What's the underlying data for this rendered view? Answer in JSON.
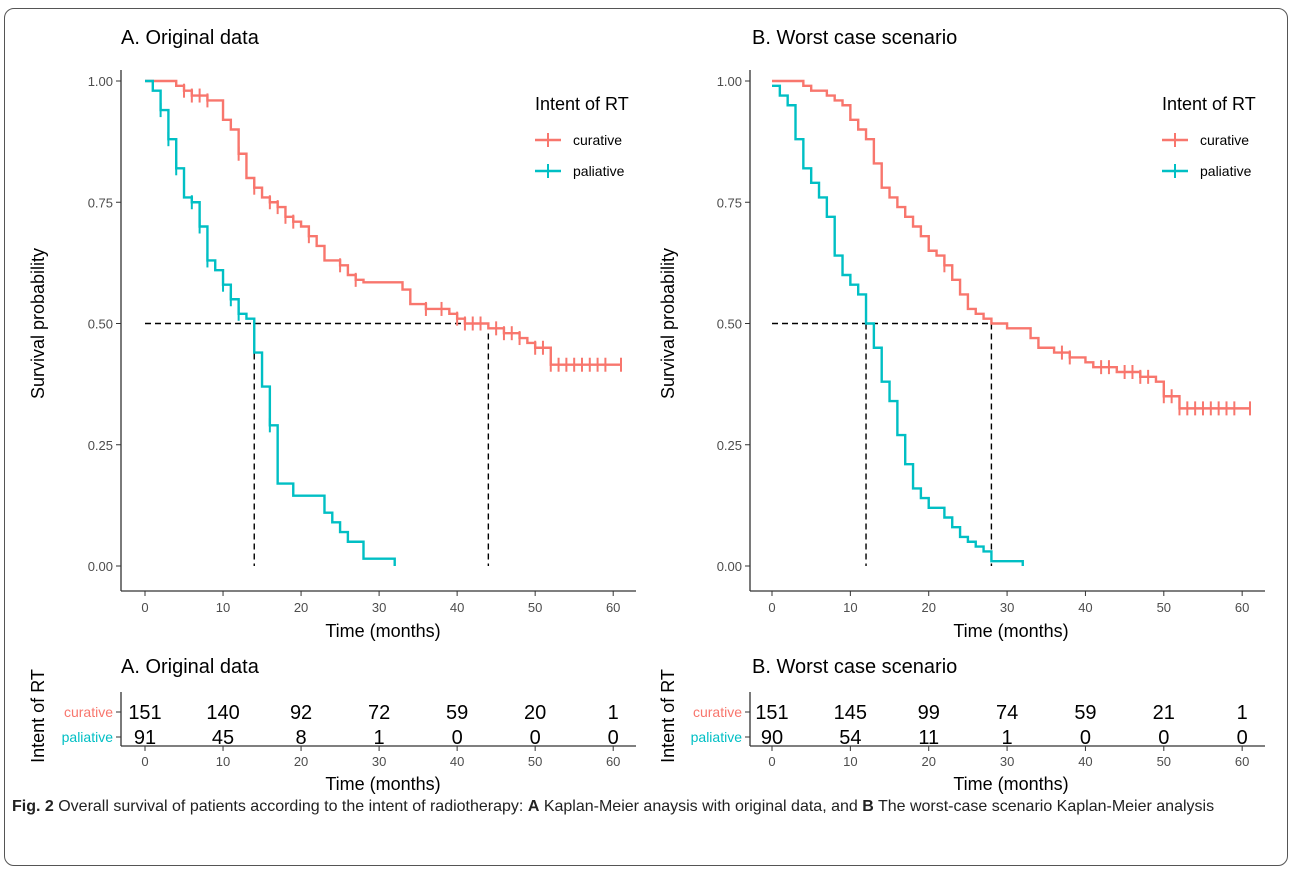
{
  "caption": {
    "fig_label": "Fig. 2",
    "text_1": " Overall survival of patients according to the intent of radiotherapy: ",
    "label_a": "A",
    "text_2": " Kaplan-Meier anaysis with original data, and ",
    "label_b": "B",
    "text_3": " The worst-case scenario Kaplan-Meier analysis"
  },
  "colors": {
    "curative": "#F8766D",
    "paliative": "#00BFC4",
    "median_line": "#000000"
  },
  "chart_data": [
    {
      "type": "line",
      "subtype": "kaplan-meier step",
      "title": "A. Original data",
      "xlabel": "Time (months)",
      "ylabel": "Survival probability",
      "xlim": [
        0,
        61
      ],
      "ylim": [
        0,
        1
      ],
      "x_ticks": [
        "0",
        "10",
        "20",
        "30",
        "40",
        "50",
        "60"
      ],
      "y_ticks": [
        "0.00",
        "0.25",
        "0.50",
        "0.75",
        "1.00"
      ],
      "legend": {
        "title": "Intent of RT",
        "position": "top-right",
        "entries": [
          "curative",
          "paliative"
        ]
      },
      "median_line": {
        "y": 0.5,
        "x_ends": [
          14,
          44
        ]
      },
      "series": [
        {
          "name": "curative",
          "points": [
            [
              0,
              1.0
            ],
            [
              4,
              0.99
            ],
            [
              5,
              0.98
            ],
            [
              6,
              0.97
            ],
            [
              8,
              0.96
            ],
            [
              10,
              0.92
            ],
            [
              11,
              0.9
            ],
            [
              12,
              0.85
            ],
            [
              13,
              0.8
            ],
            [
              14,
              0.78
            ],
            [
              15,
              0.76
            ],
            [
              16,
              0.75
            ],
            [
              17,
              0.74
            ],
            [
              18,
              0.72
            ],
            [
              19,
              0.71
            ],
            [
              20,
              0.7
            ],
            [
              21,
              0.68
            ],
            [
              22,
              0.66
            ],
            [
              23,
              0.63
            ],
            [
              25,
              0.62
            ],
            [
              26,
              0.6
            ],
            [
              27,
              0.59
            ],
            [
              28,
              0.585
            ],
            [
              33,
              0.57
            ],
            [
              34,
              0.54
            ],
            [
              36,
              0.53
            ],
            [
              39,
              0.52
            ],
            [
              40,
              0.51
            ],
            [
              41,
              0.5
            ],
            [
              44,
              0.49
            ],
            [
              46,
              0.48
            ],
            [
              48,
              0.47
            ],
            [
              49,
              0.46
            ],
            [
              50,
              0.45
            ],
            [
              52,
              0.415
            ],
            [
              61,
              0.415
            ]
          ],
          "censor_x": [
            5,
            6,
            7,
            8,
            12,
            14,
            16,
            17,
            18,
            19,
            21,
            25,
            27,
            36,
            38,
            40,
            41,
            42,
            43,
            45,
            46,
            47,
            48,
            50,
            51,
            52,
            53,
            54,
            55,
            56,
            57,
            58,
            59,
            61
          ]
        },
        {
          "name": "paliative",
          "points": [
            [
              0,
              1.0
            ],
            [
              1,
              0.98
            ],
            [
              2,
              0.94
            ],
            [
              3,
              0.88
            ],
            [
              4,
              0.82
            ],
            [
              5,
              0.76
            ],
            [
              6,
              0.75
            ],
            [
              7,
              0.7
            ],
            [
              8,
              0.63
            ],
            [
              9,
              0.61
            ],
            [
              10,
              0.58
            ],
            [
              11,
              0.55
            ],
            [
              12,
              0.52
            ],
            [
              13,
              0.51
            ],
            [
              14,
              0.44
            ],
            [
              15,
              0.37
            ],
            [
              16,
              0.29
            ],
            [
              17,
              0.17
            ],
            [
              19,
              0.145
            ],
            [
              23,
              0.11
            ],
            [
              24,
              0.09
            ],
            [
              25,
              0.07
            ],
            [
              26,
              0.05
            ],
            [
              28,
              0.015
            ],
            [
              32,
              0.0
            ]
          ],
          "censor_x": [
            2,
            3,
            4,
            6,
            7,
            8,
            10,
            11,
            12,
            16
          ]
        }
      ]
    },
    {
      "type": "line",
      "subtype": "kaplan-meier step",
      "title": "B. Worst case scenario",
      "xlabel": "Time (months)",
      "ylabel": "Survival probability",
      "xlim": [
        0,
        61
      ],
      "ylim": [
        0,
        1
      ],
      "x_ticks": [
        "0",
        "10",
        "20",
        "30",
        "40",
        "50",
        "60"
      ],
      "y_ticks": [
        "0.00",
        "0.25",
        "0.50",
        "0.75",
        "1.00"
      ],
      "legend": {
        "title": "Intent of RT",
        "position": "top-right",
        "entries": [
          "curative",
          "paliative"
        ]
      },
      "median_line": {
        "y": 0.5,
        "x_ends": [
          12,
          28
        ]
      },
      "series": [
        {
          "name": "curative",
          "points": [
            [
              0,
              1.0
            ],
            [
              4,
              0.99
            ],
            [
              5,
              0.98
            ],
            [
              7,
              0.97
            ],
            [
              8,
              0.96
            ],
            [
              9,
              0.95
            ],
            [
              10,
              0.92
            ],
            [
              11,
              0.9
            ],
            [
              12,
              0.88
            ],
            [
              13,
              0.83
            ],
            [
              14,
              0.78
            ],
            [
              15,
              0.76
            ],
            [
              16,
              0.74
            ],
            [
              17,
              0.72
            ],
            [
              18,
              0.7
            ],
            [
              19,
              0.68
            ],
            [
              20,
              0.65
            ],
            [
              21,
              0.64
            ],
            [
              22,
              0.62
            ],
            [
              23,
              0.59
            ],
            [
              24,
              0.56
            ],
            [
              25,
              0.53
            ],
            [
              26,
              0.52
            ],
            [
              27,
              0.51
            ],
            [
              28,
              0.5
            ],
            [
              30,
              0.49
            ],
            [
              33,
              0.47
            ],
            [
              34,
              0.45
            ],
            [
              36,
              0.44
            ],
            [
              38,
              0.43
            ],
            [
              40,
              0.42
            ],
            [
              41,
              0.41
            ],
            [
              44,
              0.4
            ],
            [
              47,
              0.39
            ],
            [
              49,
              0.38
            ],
            [
              50,
              0.35
            ],
            [
              52,
              0.325
            ],
            [
              61,
              0.325
            ]
          ],
          "censor_x": [
            22,
            37,
            38,
            42,
            43,
            45,
            46,
            47,
            48,
            50,
            51,
            52,
            53,
            54,
            55,
            56,
            57,
            58,
            59,
            61
          ]
        },
        {
          "name": "paliative",
          "points": [
            [
              0,
              0.99
            ],
            [
              1,
              0.97
            ],
            [
              2,
              0.95
            ],
            [
              3,
              0.88
            ],
            [
              4,
              0.82
            ],
            [
              5,
              0.79
            ],
            [
              6,
              0.76
            ],
            [
              7,
              0.72
            ],
            [
              8,
              0.64
            ],
            [
              9,
              0.6
            ],
            [
              10,
              0.58
            ],
            [
              11,
              0.56
            ],
            [
              12,
              0.5
            ],
            [
              13,
              0.45
            ],
            [
              14,
              0.38
            ],
            [
              15,
              0.34
            ],
            [
              16,
              0.27
            ],
            [
              17,
              0.21
            ],
            [
              18,
              0.16
            ],
            [
              19,
              0.14
            ],
            [
              20,
              0.12
            ],
            [
              22,
              0.1
            ],
            [
              23,
              0.08
            ],
            [
              24,
              0.06
            ],
            [
              25,
              0.05
            ],
            [
              26,
              0.04
            ],
            [
              27,
              0.03
            ],
            [
              28,
              0.01
            ],
            [
              32,
              0.0
            ]
          ],
          "censor_x": []
        }
      ]
    },
    {
      "type": "table",
      "title": "A. Original data",
      "ylabel": "Intent of RT",
      "xlabel": "Time (months)",
      "x_ticks": [
        "0",
        "10",
        "20",
        "30",
        "40",
        "50",
        "60"
      ],
      "rows": [
        {
          "name": "curative",
          "values": [
            "151",
            "140",
            "92",
            "72",
            "59",
            "20",
            "1"
          ]
        },
        {
          "name": "paliative",
          "values": [
            "91",
            "45",
            "8",
            "1",
            "0",
            "0",
            "0"
          ]
        }
      ]
    },
    {
      "type": "table",
      "title": "B. Worst case scenario",
      "ylabel": "Intent of RT",
      "xlabel": "Time (months)",
      "x_ticks": [
        "0",
        "10",
        "20",
        "30",
        "40",
        "50",
        "60"
      ],
      "rows": [
        {
          "name": "curative",
          "values": [
            "151",
            "145",
            "99",
            "74",
            "59",
            "21",
            "1"
          ]
        },
        {
          "name": "paliative",
          "values": [
            "90",
            "54",
            "11",
            "1",
            "0",
            "0",
            "0"
          ]
        }
      ]
    }
  ]
}
